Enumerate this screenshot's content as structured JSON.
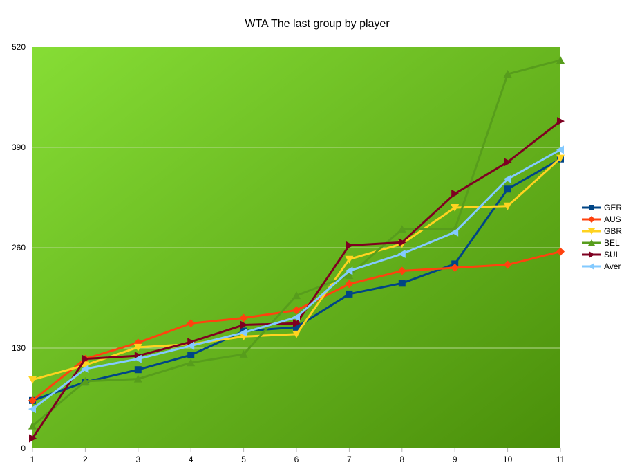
{
  "chart_data": {
    "type": "line",
    "title": "WTA The last group by player",
    "xlabel": "",
    "ylabel": "",
    "categories": [
      "1",
      "2",
      "3",
      "4",
      "5",
      "6",
      "7",
      "8",
      "9",
      "10",
      "11"
    ],
    "ylim": [
      0,
      520
    ],
    "yticks": [
      0,
      130,
      260,
      390,
      520
    ],
    "grid": true,
    "legend_position": "right",
    "colors": {
      "background_top_left": "#86dd35",
      "background_bottom_right": "#4a8f0a",
      "gridline": "#b5d98f"
    },
    "series": [
      {
        "name": "GER",
        "color": "#004586",
        "marker": "square",
        "values": [
          62,
          86,
          102,
          121,
          152,
          157,
          200,
          214,
          239,
          336,
          375
        ]
      },
      {
        "name": "AUS",
        "color": "#ff420e",
        "marker": "diamond",
        "values": [
          62,
          116,
          137,
          162,
          169,
          179,
          213,
          230,
          234,
          238,
          255
        ]
      },
      {
        "name": "GBR",
        "color": "#ffd320",
        "marker": "triangle-down",
        "values": [
          89,
          108,
          131,
          135,
          145,
          148,
          245,
          265,
          312,
          314,
          376
        ]
      },
      {
        "name": "BEL",
        "color": "#579d1c",
        "marker": "triangle-up",
        "values": [
          29,
          87,
          90,
          111,
          122,
          198,
          224,
          284,
          284,
          485,
          503
        ]
      },
      {
        "name": "SUI",
        "color": "#7e0021",
        "marker": "triangle-right",
        "values": [
          13,
          116,
          120,
          138,
          160,
          162,
          263,
          267,
          330,
          371,
          424
        ]
      },
      {
        "name": "Aver",
        "color": "#83caff",
        "marker": "triangle-left",
        "values": [
          51,
          103,
          116,
          133,
          150,
          170,
          230,
          252,
          280,
          349,
          387
        ]
      }
    ]
  }
}
